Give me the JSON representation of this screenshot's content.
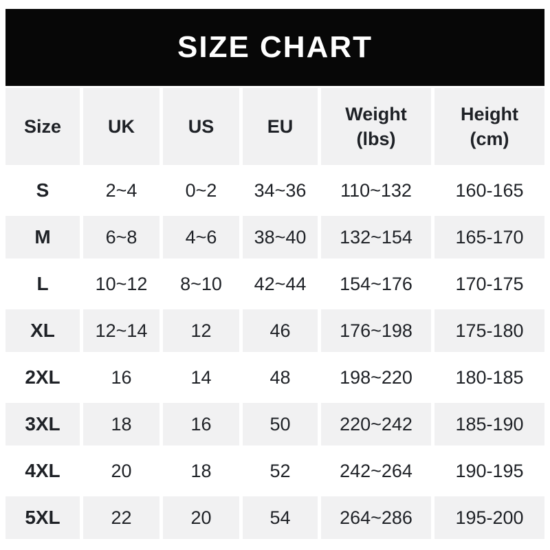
{
  "banner": {
    "title": "SIZE CHART",
    "background_color": "#070707",
    "text_color": "#ffffff"
  },
  "colors": {
    "row_alt_background": "#f1f1f2",
    "row_background": "#ffffff",
    "text": "#1e2126",
    "page_background": "#ffffff"
  },
  "table": {
    "header": {
      "size": "Size",
      "uk": "UK",
      "us": "US",
      "eu": "EU",
      "weight": "Weight\n(lbs)",
      "height": "Height\n(cm)"
    },
    "rows": [
      {
        "size": "S",
        "uk": "2~4",
        "us": "0~2",
        "eu": "34~36",
        "weight": "110~132",
        "height": "160-165"
      },
      {
        "size": "M",
        "uk": "6~8",
        "us": "4~6",
        "eu": "38~40",
        "weight": "132~154",
        "height": "165-170"
      },
      {
        "size": "L",
        "uk": "10~12",
        "us": "8~10",
        "eu": "42~44",
        "weight": "154~176",
        "height": "170-175"
      },
      {
        "size": "XL",
        "uk": "12~14",
        "us": "12",
        "eu": "46",
        "weight": "176~198",
        "height": "175-180"
      },
      {
        "size": "2XL",
        "uk": "16",
        "us": "14",
        "eu": "48",
        "weight": "198~220",
        "height": "180-185"
      },
      {
        "size": "3XL",
        "uk": "18",
        "us": "16",
        "eu": "50",
        "weight": "220~242",
        "height": "185-190"
      },
      {
        "size": "4XL",
        "uk": "20",
        "us": "18",
        "eu": "52",
        "weight": "242~264",
        "height": "190-195"
      },
      {
        "size": "5XL",
        "uk": "22",
        "us": "20",
        "eu": "54",
        "weight": "264~286",
        "height": "195-200"
      }
    ]
  },
  "chart_data": {
    "type": "table",
    "title": "SIZE CHART",
    "columns": [
      "Size",
      "UK",
      "US",
      "EU",
      "Weight (lbs)",
      "Height (cm)"
    ],
    "rows": [
      [
        "S",
        "2~4",
        "0~2",
        "34~36",
        "110~132",
        "160-165"
      ],
      [
        "M",
        "6~8",
        "4~6",
        "38~40",
        "132~154",
        "165-170"
      ],
      [
        "L",
        "10~12",
        "8~10",
        "42~44",
        "154~176",
        "170-175"
      ],
      [
        "XL",
        "12~14",
        "12",
        "46",
        "176~198",
        "175-180"
      ],
      [
        "2XL",
        "16",
        "14",
        "48",
        "198~220",
        "180-185"
      ],
      [
        "3XL",
        "18",
        "16",
        "50",
        "220~242",
        "185-190"
      ],
      [
        "4XL",
        "20",
        "18",
        "52",
        "242~264",
        "190-195"
      ],
      [
        "5XL",
        "22",
        "20",
        "54",
        "264~286",
        "195-200"
      ]
    ],
    "layout": {
      "header_background": "#f1f1f2",
      "alternating_rows": true,
      "separator_style_weight_columns": "~",
      "separator_style_height_column": "-"
    }
  }
}
